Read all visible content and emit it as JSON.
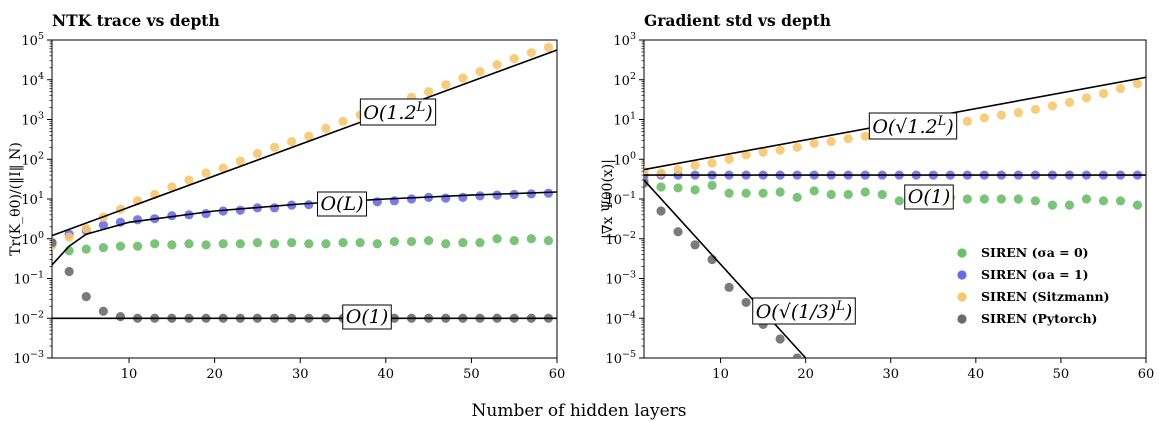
{
  "chart_data": [
    {
      "type": "scatter",
      "title": "NTK trace vs depth",
      "ylabel": "Tr(K_θ0)/(‖I‖ N)",
      "yscale": "log",
      "xlim": [
        1,
        60
      ],
      "ylim": [
        0.001,
        100000
      ],
      "xticks": [
        "10",
        "20",
        "30",
        "40",
        "50",
        "60"
      ],
      "yticks": [
        "10^-3",
        "10^-2",
        "10^-1",
        "10^0",
        "10^1",
        "10^2",
        "10^3",
        "10^4",
        "10^5"
      ],
      "x": [
        1,
        3,
        5,
        7,
        9,
        11,
        13,
        15,
        17,
        19,
        21,
        23,
        25,
        27,
        29,
        31,
        33,
        35,
        37,
        39,
        41,
        43,
        45,
        47,
        49,
        51,
        53,
        55,
        57,
        59
      ],
      "series": [
        {
          "name": "SIREN (σa = 0)",
          "color": "#6abf69",
          "values": [
            0.8,
            0.5,
            0.55,
            0.6,
            0.65,
            0.65,
            0.75,
            0.7,
            0.75,
            0.7,
            0.75,
            0.75,
            0.8,
            0.75,
            0.8,
            0.75,
            0.75,
            0.8,
            0.8,
            0.75,
            0.85,
            0.85,
            0.9,
            0.75,
            0.8,
            0.8,
            1.0,
            0.9,
            1.0,
            0.9
          ]
        },
        {
          "name": "SIREN (σa = 1)",
          "color": "#6b6bea",
          "values": [
            0.7,
            1.3,
            1.6,
            2.2,
            2.6,
            3.0,
            3.2,
            3.8,
            4.0,
            4.3,
            5.0,
            5.2,
            6.0,
            6.0,
            7.0,
            7.2,
            7.5,
            8.0,
            8.5,
            8.5,
            9.0,
            10.0,
            11.0,
            10.5,
            11.0,
            12.0,
            12.5,
            13.0,
            13.5,
            14.0
          ]
        },
        {
          "name": "SIREN (Sitzmann)",
          "color": "#f8c76a",
          "values": [
            0.7,
            1.1,
            1.8,
            3.5,
            5.5,
            9.0,
            13.0,
            20.0,
            30.0,
            45.0,
            60.0,
            90.0,
            140.0,
            200.0,
            280.0,
            380.0,
            600.0,
            900.0,
            1300.0,
            1700.0,
            2500.0,
            3600.0,
            5000.0,
            7500.0,
            11000.0,
            16000.0,
            24000.0,
            34000.0,
            48000.0,
            65000.0
          ]
        },
        {
          "name": "SIREN (Pytorch)",
          "color": "#6b6b6b",
          "values": [
            0.8,
            0.15,
            0.035,
            0.015,
            0.011,
            0.01,
            0.01,
            0.01,
            0.01,
            0.01,
            0.01,
            0.01,
            0.01,
            0.01,
            0.01,
            0.01,
            0.01,
            0.01,
            0.01,
            0.01,
            0.01,
            0.01,
            0.01,
            0.01,
            0.01,
            0.01,
            0.01,
            0.01,
            0.01,
            0.01
          ]
        }
      ],
      "trend_lines": [
        {
          "label": "O(1.2^L)",
          "x": [
            1,
            60
          ],
          "y": [
            1.2,
            56000
          ]
        },
        {
          "label": "O(L)",
          "x": [
            1,
            3,
            5,
            10,
            20,
            30,
            40,
            50,
            60
          ],
          "y": [
            0.22,
            0.65,
            1.3,
            2.6,
            5.0,
            7.5,
            10.0,
            12.5,
            15.0
          ]
        },
        {
          "label": "O(1)",
          "x": [
            1,
            60
          ],
          "y": [
            0.01,
            0.01
          ]
        }
      ]
    },
    {
      "type": "scatter",
      "title": "Gradient std vs depth",
      "ylabel": "|∇x Ψθ0(x)|",
      "yscale": "log",
      "xlim": [
        1,
        60
      ],
      "ylim": [
        1e-05,
        1000
      ],
      "xticks": [
        "10",
        "20",
        "30",
        "40",
        "50",
        "60"
      ],
      "yticks": [
        "10^-5",
        "10^-4",
        "10^-3",
        "10^-2",
        "10^-1",
        "10^0",
        "10^1",
        "10^2",
        "10^3"
      ],
      "x": [
        1,
        3,
        5,
        7,
        9,
        11,
        13,
        15,
        17,
        19,
        21,
        23,
        25,
        27,
        29,
        31,
        33,
        35,
        37,
        39,
        41,
        43,
        45,
        47,
        49,
        51,
        53,
        55,
        57,
        59
      ],
      "series": [
        {
          "name": "SIREN (σa = 0)",
          "color": "#6abf69",
          "values": [
            0.3,
            0.2,
            0.19,
            0.17,
            0.22,
            0.14,
            0.14,
            0.14,
            0.15,
            0.11,
            0.16,
            0.13,
            0.13,
            0.15,
            0.13,
            0.09,
            0.1,
            0.1,
            0.11,
            0.1,
            0.1,
            0.1,
            0.1,
            0.09,
            0.07,
            0.07,
            0.1,
            0.09,
            0.09,
            0.07
          ]
        },
        {
          "name": "SIREN (σa = 1)",
          "color": "#6b6bea",
          "values": [
            0.4,
            0.4,
            0.4,
            0.4,
            0.4,
            0.4,
            0.4,
            0.4,
            0.4,
            0.4,
            0.4,
            0.4,
            0.4,
            0.4,
            0.4,
            0.4,
            0.4,
            0.4,
            0.4,
            0.4,
            0.4,
            0.4,
            0.4,
            0.4,
            0.4,
            0.4,
            0.4,
            0.4,
            0.4,
            0.4
          ]
        },
        {
          "name": "SIREN (Sitzmann)",
          "color": "#f8c76a",
          "values": [
            0.5,
            0.45,
            0.55,
            0.7,
            0.8,
            1.0,
            1.3,
            1.5,
            1.7,
            2.0,
            2.5,
            2.8,
            3.3,
            3.8,
            4.5,
            5.0,
            6.0,
            7.0,
            8.0,
            9.0,
            11.0,
            13.0,
            15.0,
            18.0,
            22.0,
            27.0,
            35.0,
            45.0,
            60.0,
            80.0
          ]
        },
        {
          "name": "SIREN (Pytorch)",
          "color": "#6b6b6b",
          "values": [
            0.25,
            0.05,
            0.015,
            0.007,
            0.003,
            0.0006,
            0.00025,
            7e-05,
            3e-05,
            1e-05
          ]
        }
      ],
      "trend_lines": [
        {
          "label": "O(√1.2^L)",
          "x": [
            1,
            60
          ],
          "y": [
            0.55,
            115
          ]
        },
        {
          "label": "O(1)",
          "x": [
            1,
            60
          ],
          "y": [
            0.4,
            0.4
          ]
        },
        {
          "label": "O(√(1/3)^L)",
          "x": [
            1,
            20
          ],
          "y": [
            0.3,
            1e-05
          ]
        }
      ]
    }
  ],
  "legend": {
    "placement": "lower-right",
    "entries": [
      {
        "label": "SIREN (σa = 0)",
        "color": "#6abf69"
      },
      {
        "label": "SIREN (σa = 1)",
        "color": "#6b6bea"
      },
      {
        "label": "SIREN (Sitzmann)",
        "color": "#f8c76a"
      },
      {
        "label": "SIREN (Pytorch)",
        "color": "#6b6b6b"
      }
    ]
  },
  "shared_xlabel": "Number of hidden layers"
}
